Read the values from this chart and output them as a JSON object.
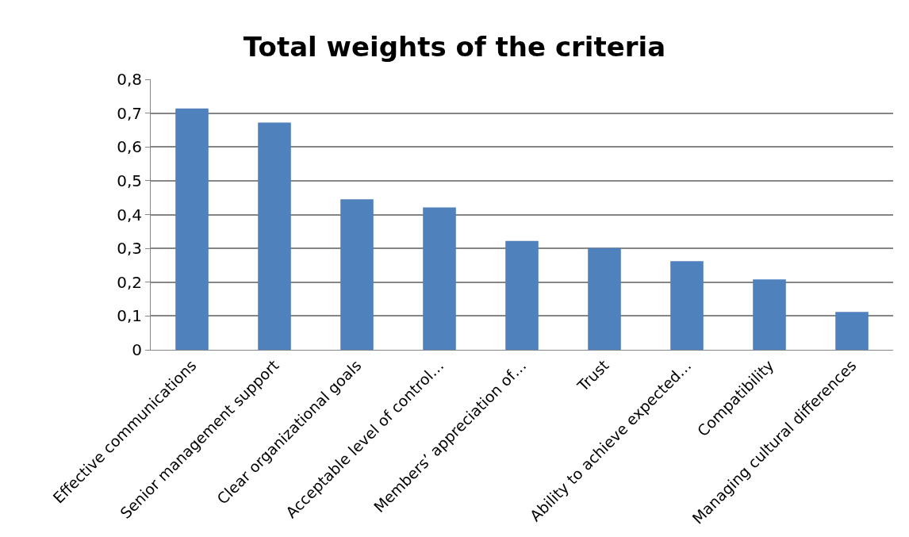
{
  "chart_data": {
    "type": "bar",
    "title": "Total weights of the criteria",
    "categories": [
      "Effective communications",
      "Senior management support",
      "Clear organizational goals",
      "Acceptable level of control…",
      "Members’ appreciation of…",
      "Trust",
      "Ability to achieve expected…",
      "Compatibility",
      "Managing cultural differences"
    ],
    "values": [
      0.714,
      0.672,
      0.445,
      0.421,
      0.322,
      0.301,
      0.262,
      0.208,
      0.112
    ],
    "color": "#4f81bd",
    "ylim": [
      0,
      0.8
    ],
    "yticks": [
      {
        "value": 0,
        "label": "0"
      },
      {
        "value": 0.1,
        "label": "0,1"
      },
      {
        "value": 0.2,
        "label": "0,2"
      },
      {
        "value": 0.3,
        "label": "0,3"
      },
      {
        "value": 0.4,
        "label": "0,4"
      },
      {
        "value": 0.5,
        "label": "0,5"
      },
      {
        "value": 0.6,
        "label": "0,6"
      },
      {
        "value": 0.7,
        "label": "0,7"
      },
      {
        "value": 0.8,
        "label": "0,8"
      }
    ],
    "grid": "y"
  }
}
